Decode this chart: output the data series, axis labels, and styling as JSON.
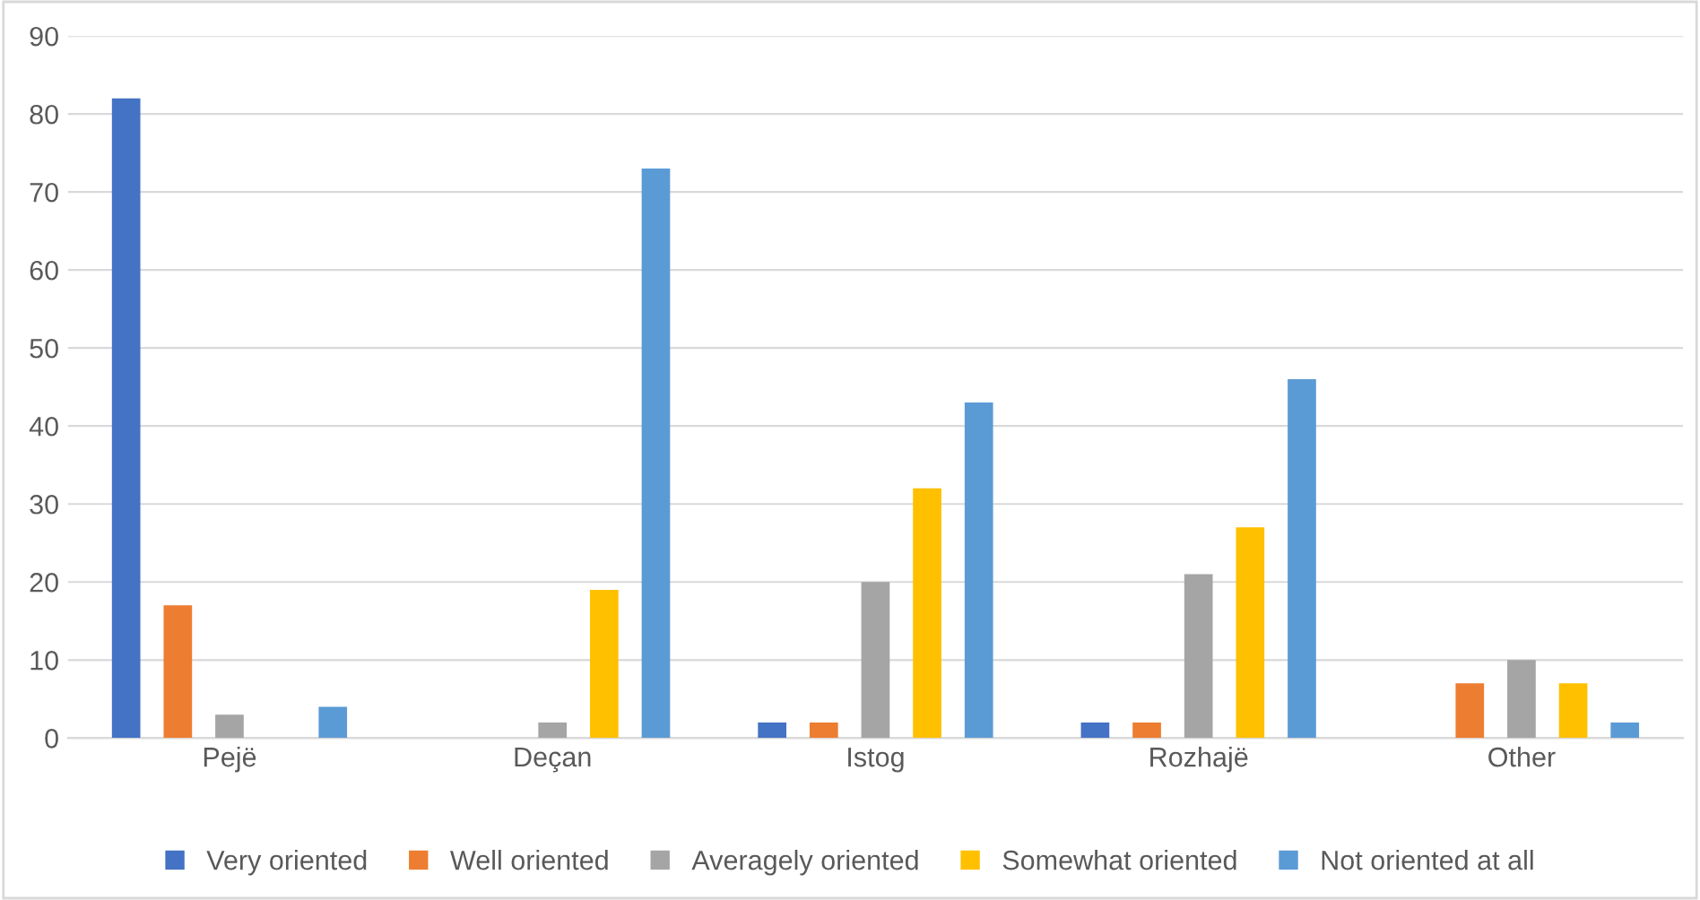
{
  "chart_data": {
    "type": "bar",
    "categories": [
      "Pejë",
      "Deçan",
      "Istog",
      "Rozhajë",
      "Other"
    ],
    "series": [
      {
        "name": "Very oriented",
        "color": "#4472c4",
        "values": [
          82,
          0,
          2,
          2,
          0
        ]
      },
      {
        "name": "Well oriented",
        "color": "#ed7d31",
        "values": [
          17,
          0,
          2,
          2,
          7
        ]
      },
      {
        "name": "Averagely oriented",
        "color": "#a5a5a5",
        "values": [
          3,
          2,
          20,
          21,
          10
        ]
      },
      {
        "name": "Somewhat oriented",
        "color": "#ffc000",
        "values": [
          0,
          19,
          32,
          27,
          7
        ]
      },
      {
        "name": "Not oriented at all",
        "color": "#5b9bd5",
        "values": [
          4,
          73,
          43,
          46,
          2
        ]
      }
    ],
    "ylim": [
      0,
      90
    ],
    "yticks": [
      0,
      10,
      20,
      30,
      40,
      50,
      60,
      70,
      80,
      90
    ],
    "grid": "y",
    "legend": "bottom"
  }
}
